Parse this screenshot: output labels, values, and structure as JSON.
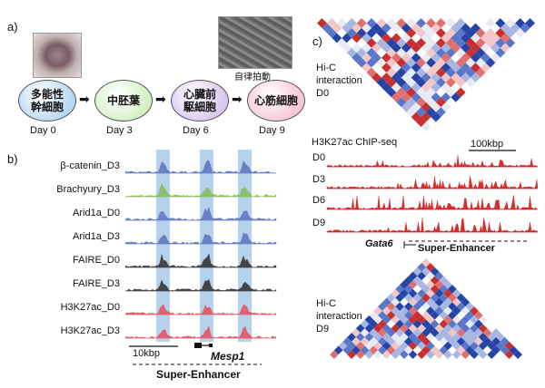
{
  "panel_a": {
    "label": "a)",
    "stages": [
      {
        "name": "多能性\n幹細胞",
        "day": "Day 0",
        "color": "#b9d8f2"
      },
      {
        "name": "中胚葉",
        "day": "Day 3",
        "color": "#d5f0c4"
      },
      {
        "name": "心臓前\n駆細胞",
        "day": "Day 6",
        "color": "#d9c8ef"
      },
      {
        "name": "心筋細胞",
        "day": "Day 9",
        "color": "#f6c6d6"
      }
    ],
    "photo_caption": "自律拍動"
  },
  "panel_b": {
    "label": "b)",
    "tracks": [
      {
        "name": "β-catenin_D3",
        "color": "#6a7fc7"
      },
      {
        "name": "Brachyury_D3",
        "color": "#8cbf6a"
      },
      {
        "name": "Arid1a_D0",
        "color": "#6a7fc7"
      },
      {
        "name": "Arid1a_D3",
        "color": "#6a7fc7"
      },
      {
        "name": "FAIRE_D0",
        "color": "#444444"
      },
      {
        "name": "FAIRE_D3",
        "color": "#444444"
      },
      {
        "name": "H3K27ac_D0",
        "color": "#e0606e"
      },
      {
        "name": "H3K27ac_D3",
        "color": "#e0606e"
      }
    ],
    "scale_bar": "10kbp",
    "gene": "Mesp1",
    "super_enhancer": "Super-Enhancer",
    "highlight_color": "#5b9bd5"
  },
  "panel_c": {
    "label": "c)",
    "hic_top": "Hi-C\ninteraction\nD0",
    "hic_bottom": "Hi-C\ninteraction\nD9",
    "chip_title": "H3K27ac ChIP-seq",
    "scale_bar": "100kbp",
    "chip_tracks": [
      "D0",
      "D3",
      "D6",
      "D9"
    ],
    "gene": "Gata6",
    "super_enhancer": "Super-Enhancer",
    "track_color": "#d32f2f"
  }
}
